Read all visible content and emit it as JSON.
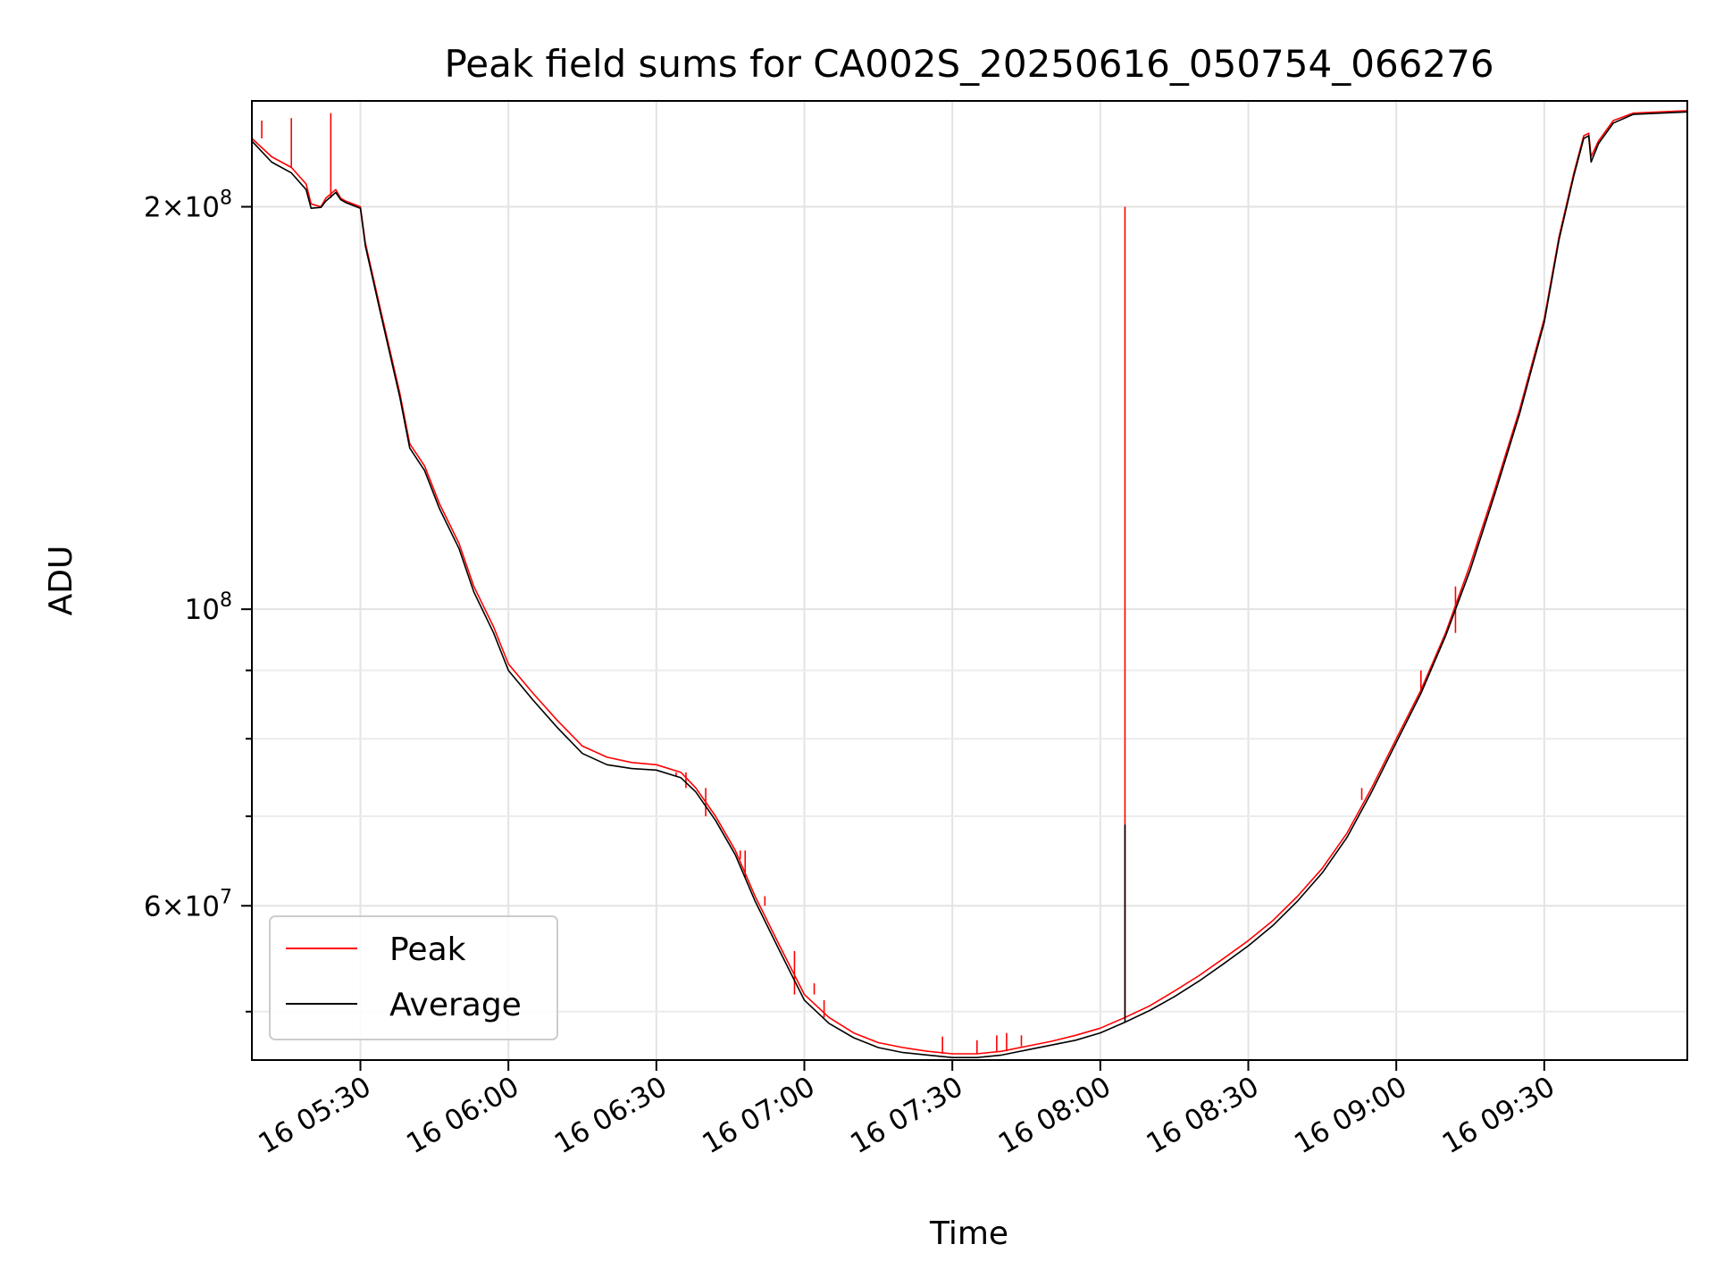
{
  "chart_data": {
    "type": "line",
    "title": "Peak field sums for CA002S_20250616_050754_066276",
    "xlabel": "Time",
    "ylabel": "ADU",
    "yscale": "log",
    "ylim": [
      46000000,
      240000000
    ],
    "xlim": [
      "2025-06-16 05:08",
      "2025-06-16 09:59"
    ],
    "grid": true,
    "legend_position": "lower-left",
    "x_ticks": [
      {
        "x": "2025-06-16 05:30",
        "label": "16 05:30"
      },
      {
        "x": "2025-06-16 06:00",
        "label": "16 06:00"
      },
      {
        "x": "2025-06-16 06:30",
        "label": "16 06:30"
      },
      {
        "x": "2025-06-16 07:00",
        "label": "16 07:00"
      },
      {
        "x": "2025-06-16 07:30",
        "label": "16 07:30"
      },
      {
        "x": "2025-06-16 08:00",
        "label": "16 08:00"
      },
      {
        "x": "2025-06-16 08:30",
        "label": "16 08:30"
      },
      {
        "x": "2025-06-16 09:00",
        "label": "16 09:00"
      },
      {
        "x": "2025-06-16 09:30",
        "label": "16 09:30"
      }
    ],
    "y_major_ticks": [
      {
        "value": 60000000,
        "base": "6×10",
        "exp": "7"
      },
      {
        "value": 100000000,
        "base": "10",
        "exp": "8"
      },
      {
        "value": 200000000,
        "base": "2×10",
        "exp": "8"
      }
    ],
    "y_minor_ticks": [
      50000000,
      70000000,
      80000000,
      90000000
    ],
    "series": [
      {
        "name": "Peak",
        "color": "#ff0000",
        "points": [
          [
            "05:08",
            225000000
          ],
          [
            "05:12",
            218000000
          ],
          [
            "05:16",
            214000000
          ],
          [
            "05:19",
            208000000
          ],
          [
            "05:20",
            201000000
          ],
          [
            "05:22",
            200000000
          ],
          [
            "05:23",
            203000000
          ],
          [
            "05:25",
            206000000
          ],
          [
            "05:26",
            203000000
          ],
          [
            "05:27",
            202000000
          ],
          [
            "05:30",
            200000000
          ],
          [
            "05:31",
            188000000
          ],
          [
            "05:34",
            168000000
          ],
          [
            "05:38",
            145000000
          ],
          [
            "05:40",
            133000000
          ],
          [
            "05:43",
            128000000
          ],
          [
            "05:46",
            120000000
          ],
          [
            "05:50",
            112000000
          ],
          [
            "05:53",
            104000000
          ],
          [
            "05:57",
            97000000
          ],
          [
            "06:00",
            91000000
          ],
          [
            "06:05",
            86500000
          ],
          [
            "06:10",
            82500000
          ],
          [
            "06:15",
            79000000
          ],
          [
            "06:20",
            77500000
          ],
          [
            "06:25",
            76800000
          ],
          [
            "06:30",
            76500000
          ],
          [
            "06:35",
            75500000
          ],
          [
            "06:38",
            73500000
          ],
          [
            "06:42",
            70000000
          ],
          [
            "06:46",
            66000000
          ],
          [
            "06:50",
            61000000
          ],
          [
            "06:55",
            56000000
          ],
          [
            "07:00",
            51500000
          ],
          [
            "07:05",
            49500000
          ],
          [
            "07:10",
            48200000
          ],
          [
            "07:15",
            47400000
          ],
          [
            "07:20",
            47000000
          ],
          [
            "07:25",
            46700000
          ],
          [
            "07:30",
            46500000
          ],
          [
            "07:35",
            46500000
          ],
          [
            "07:40",
            46700000
          ],
          [
            "07:45",
            47100000
          ],
          [
            "07:50",
            47500000
          ],
          [
            "07:55",
            48000000
          ],
          [
            "08:00",
            48600000
          ],
          [
            "08:05",
            49500000
          ],
          [
            "08:10",
            50500000
          ],
          [
            "08:15",
            51800000
          ],
          [
            "08:20",
            53200000
          ],
          [
            "08:25",
            54800000
          ],
          [
            "08:30",
            56500000
          ],
          [
            "08:35",
            58500000
          ],
          [
            "08:40",
            61000000
          ],
          [
            "08:45",
            64000000
          ],
          [
            "08:50",
            68000000
          ],
          [
            "08:55",
            73500000
          ],
          [
            "09:00",
            80000000
          ],
          [
            "09:05",
            87000000
          ],
          [
            "09:10",
            96000000
          ],
          [
            "09:15",
            108000000
          ],
          [
            "09:20",
            123000000
          ],
          [
            "09:25",
            141000000
          ],
          [
            "09:30",
            165000000
          ],
          [
            "09:33",
            190000000
          ],
          [
            "09:36",
            212000000
          ],
          [
            "09:38",
            226000000
          ],
          [
            "09:39",
            227000000
          ],
          [
            "09:39.5",
            218000000
          ],
          [
            "09:41",
            224000000
          ],
          [
            "09:44",
            232000000
          ],
          [
            "09:48",
            235000000
          ],
          [
            "09:59",
            236000000
          ]
        ],
        "spikes": [
          [
            "05:10",
            232000000
          ],
          [
            "05:16",
            233000000
          ],
          [
            "05:24",
            235000000
          ],
          [
            "06:34",
            75000000
          ],
          [
            "06:36",
            73500000
          ],
          [
            "06:40",
            70000000
          ],
          [
            "06:46",
            66000000
          ],
          [
            "06:47",
            65000000
          ],
          [
            "06:48",
            63000000
          ],
          [
            "06:52",
            60000000
          ],
          [
            "06:58",
            55500000
          ],
          [
            "07:02",
            52500000
          ],
          [
            "07:04",
            51000000
          ],
          [
            "07:28",
            47900000
          ],
          [
            "07:35",
            47600000
          ],
          [
            "07:39",
            48000000
          ],
          [
            "07:41",
            48200000
          ],
          [
            "07:44",
            48000000
          ],
          [
            "08:05",
            200000000
          ],
          [
            "08:53",
            72000000
          ],
          [
            "09:05",
            90000000
          ],
          [
            "09:12",
            104000000
          ]
        ]
      },
      {
        "name": "Average",
        "color": "#000000",
        "points": [
          [
            "05:08",
            224000000
          ],
          [
            "05:12",
            216000000
          ],
          [
            "05:16",
            212000000
          ],
          [
            "05:19",
            206000000
          ],
          [
            "05:20",
            199500000
          ],
          [
            "05:22",
            199800000
          ],
          [
            "05:23",
            202000000
          ],
          [
            "05:25",
            205000000
          ],
          [
            "05:26",
            202500000
          ],
          [
            "05:27",
            201500000
          ],
          [
            "05:30",
            199500000
          ],
          [
            "05:31",
            187000000
          ],
          [
            "05:34",
            167000000
          ],
          [
            "05:38",
            144000000
          ],
          [
            "05:40",
            132000000
          ],
          [
            "05:43",
            127000000
          ],
          [
            "05:46",
            119000000
          ],
          [
            "05:50",
            111000000
          ],
          [
            "05:53",
            103000000
          ],
          [
            "05:57",
            96000000
          ],
          [
            "06:00",
            90000000
          ],
          [
            "06:05",
            85500000
          ],
          [
            "06:10",
            81500000
          ],
          [
            "06:15",
            78000000
          ],
          [
            "06:20",
            76500000
          ],
          [
            "06:25",
            76000000
          ],
          [
            "06:30",
            75800000
          ],
          [
            "06:35",
            74800000
          ],
          [
            "06:38",
            73000000
          ],
          [
            "06:42",
            69500000
          ],
          [
            "06:46",
            65500000
          ],
          [
            "06:50",
            60500000
          ],
          [
            "06:55",
            55500000
          ],
          [
            "07:00",
            51000000
          ],
          [
            "07:05",
            49000000
          ],
          [
            "07:10",
            47800000
          ],
          [
            "07:15",
            47000000
          ],
          [
            "07:20",
            46600000
          ],
          [
            "07:25",
            46400000
          ],
          [
            "07:30",
            46200000
          ],
          [
            "07:35",
            46200000
          ],
          [
            "07:40",
            46400000
          ],
          [
            "07:45",
            46800000
          ],
          [
            "07:50",
            47200000
          ],
          [
            "07:55",
            47600000
          ],
          [
            "08:00",
            48200000
          ],
          [
            "08:05",
            49100000
          ],
          [
            "08:10",
            50100000
          ],
          [
            "08:15",
            51300000
          ],
          [
            "08:20",
            52700000
          ],
          [
            "08:25",
            54300000
          ],
          [
            "08:30",
            56000000
          ],
          [
            "08:35",
            58000000
          ],
          [
            "08:40",
            60500000
          ],
          [
            "08:45",
            63500000
          ],
          [
            "08:50",
            67500000
          ],
          [
            "08:55",
            73000000
          ],
          [
            "09:00",
            79500000
          ],
          [
            "09:05",
            86500000
          ],
          [
            "09:10",
            95500000
          ],
          [
            "09:15",
            107000000
          ],
          [
            "09:20",
            122000000
          ],
          [
            "09:25",
            140000000
          ],
          [
            "09:30",
            164000000
          ],
          [
            "09:33",
            189000000
          ],
          [
            "09:36",
            211000000
          ],
          [
            "09:38",
            225000000
          ],
          [
            "09:39",
            226000000
          ],
          [
            "09:39.5",
            216000000
          ],
          [
            "09:41",
            223000000
          ],
          [
            "09:44",
            231000000
          ],
          [
            "09:48",
            234500000
          ],
          [
            "09:59",
            235500000
          ]
        ],
        "spikes": [
          [
            "08:05",
            69000000
          ]
        ]
      }
    ]
  }
}
